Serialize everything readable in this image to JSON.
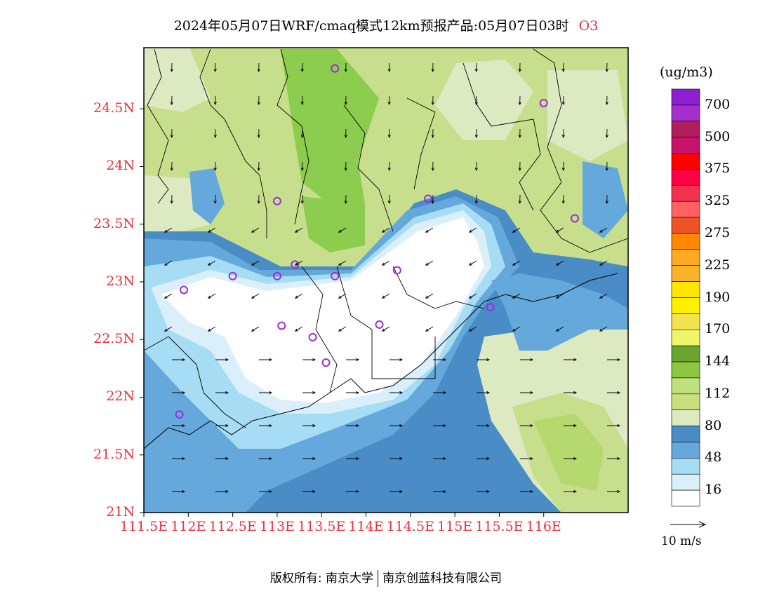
{
  "title": {
    "text": "2024年05月07日WRF/cmaq模式12km预报产品:05月07日03时",
    "species": "O3"
  },
  "map": {
    "lat_labels": [
      "24.5N",
      "24N",
      "23.5N",
      "23N",
      "22.5N",
      "22N",
      "21.5N",
      "21N"
    ],
    "lon_labels": [
      "111.5E",
      "112E",
      "112.5E",
      "113E",
      "113.5E",
      "114E",
      "114.5E",
      "115E",
      "115.5E",
      "116E"
    ],
    "lat_values": [
      24.5,
      24,
      23.5,
      23,
      22.5,
      22,
      21.5,
      21
    ],
    "lon_values": [
      111.5,
      112,
      112.5,
      113,
      113.5,
      114,
      114.5,
      115,
      115.5,
      116
    ],
    "stations": [
      [
        112.5,
        23.05
      ],
      [
        111.95,
        22.93
      ],
      [
        113.0,
        23.05
      ],
      [
        113.2,
        23.15
      ],
      [
        113.65,
        23.05
      ],
      [
        114.35,
        23.1
      ],
      [
        113.05,
        22.62
      ],
      [
        113.4,
        22.52
      ],
      [
        113.55,
        22.3
      ],
      [
        114.15,
        22.63
      ],
      [
        113.0,
        23.7
      ],
      [
        114.7,
        23.72
      ],
      [
        113.65,
        24.85
      ],
      [
        116.0,
        24.55
      ],
      [
        116.35,
        23.55
      ],
      [
        115.4,
        22.78
      ],
      [
        111.9,
        21.85
      ]
    ],
    "colors": {
      "white": "#ffffff",
      "c16": "#dbeffb",
      "c32": "#a6dcf4",
      "c48": "#6aaedd",
      "c64": "#4a8cc6",
      "c80": "#dde9c1",
      "c96": "#c7df8d",
      "c112": "#b5d86f",
      "c128": "#8ccc4e",
      "border": "#000000",
      "station": "#9a2fd8"
    }
  },
  "colorbar": {
    "unit": "(ug/m3)",
    "labels": [
      "700",
      "500",
      "375",
      "325",
      "275",
      "225",
      "190",
      "170",
      "144",
      "112",
      "80",
      "48",
      "16"
    ],
    "colors": [
      "#8c1fcf",
      "#a52ecc",
      "#b01e5c",
      "#c8126b",
      "#ff0000",
      "#ff0044",
      "#f2334f",
      "#ff6060",
      "#ec5426",
      "#ff8800",
      "#ffaa22",
      "#f8b32a",
      "#ffe600",
      "#fff000",
      "#f2e44c",
      "#f0f66c",
      "#6aa62e",
      "#8cc640",
      "#bfe07a",
      "#c7df7d",
      "#dde9c1",
      "#4a8cc6",
      "#64a8dc",
      "#a6dcf4",
      "#dbeffb",
      "#ffffff"
    ]
  },
  "vector_ref": {
    "label": "10 m/s"
  },
  "footer": {
    "left": "版权所有: 南京大学",
    "right": "南京创蓝科技有限公司"
  }
}
